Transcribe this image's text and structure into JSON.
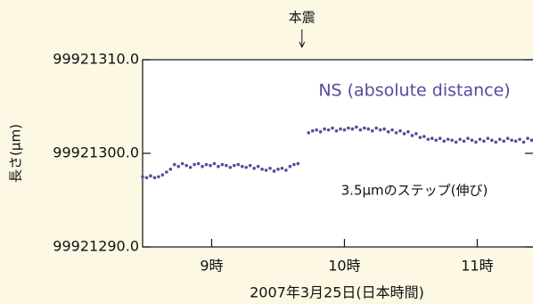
{
  "chart_data": {
    "type": "scatter",
    "series_label": "NS (absolute distance)",
    "annotations": [
      {
        "text": "本震",
        "x": 9.68
      },
      {
        "text": "3.5μmのステップ(伸び)"
      }
    ],
    "xlabel": "2007年3月25日(日本時間)",
    "ylabel": "長さ(μm)",
    "color": "#5a4a9c",
    "xlim": [
      8.48,
      11.42
    ],
    "ylim": [
      99921290,
      99921310
    ],
    "xticks": [
      {
        "value": 9,
        "label": "9時"
      },
      {
        "value": 10,
        "label": "10時"
      },
      {
        "value": 11,
        "label": "11時"
      }
    ],
    "yticks": [
      {
        "value": 99921290,
        "label": "99921290.0"
      },
      {
        "value": 99921300,
        "label": "99921300.0"
      },
      {
        "value": 99921310,
        "label": "99921310.0"
      }
    ],
    "x": [
      8.48,
      8.51,
      8.54,
      8.57,
      8.6,
      8.63,
      8.66,
      8.69,
      8.72,
      8.75,
      8.78,
      8.81,
      8.84,
      8.87,
      8.9,
      8.93,
      8.96,
      8.99,
      9.02,
      9.05,
      9.08,
      9.11,
      9.14,
      9.17,
      9.2,
      9.23,
      9.26,
      9.29,
      9.32,
      9.35,
      9.38,
      9.41,
      9.44,
      9.47,
      9.5,
      9.53,
      9.56,
      9.59,
      9.62,
      9.65,
      9.73,
      9.76,
      9.79,
      9.82,
      9.85,
      9.88,
      9.91,
      9.94,
      9.97,
      10.0,
      10.03,
      10.06,
      10.09,
      10.12,
      10.15,
      10.18,
      10.21,
      10.24,
      10.27,
      10.3,
      10.33,
      10.36,
      10.39,
      10.42,
      10.45,
      10.48,
      10.51,
      10.54,
      10.57,
      10.6,
      10.63,
      10.66,
      10.69,
      10.72,
      10.75,
      10.78,
      10.81,
      10.84,
      10.87,
      10.9,
      10.93,
      10.96,
      10.99,
      11.02,
      11.05,
      11.08,
      11.11,
      11.14,
      11.17,
      11.2,
      11.23,
      11.26,
      11.29,
      11.32,
      11.35,
      11.38,
      11.41
    ],
    "values": [
      99921297.5,
      99921297.4,
      99921297.6,
      99921297.4,
      99921297.5,
      99921297.7,
      99921298.0,
      99921298.3,
      99921298.8,
      99921298.6,
      99921298.9,
      99921298.7,
      99921298.5,
      99921298.8,
      99921298.9,
      99921298.6,
      99921298.8,
      99921298.7,
      99921298.9,
      99921298.6,
      99921298.8,
      99921298.7,
      99921298.5,
      99921298.7,
      99921298.8,
      99921298.6,
      99921298.5,
      99921298.7,
      99921298.4,
      99921298.6,
      99921298.3,
      99921298.2,
      99921298.4,
      99921298.1,
      99921298.3,
      99921298.4,
      99921298.2,
      99921298.6,
      99921298.8,
      99921298.9,
      99921302.2,
      99921302.4,
      99921302.5,
      99921302.3,
      99921302.6,
      99921302.5,
      99921302.7,
      99921302.4,
      99921302.6,
      99921302.5,
      99921302.7,
      99921302.6,
      99921302.8,
      99921302.5,
      99921302.7,
      99921302.6,
      99921302.4,
      99921302.7,
      99921302.5,
      99921302.6,
      99921302.3,
      99921302.5,
      99921302.2,
      99921302.4,
      99921302.1,
      99921302.3,
      99921301.9,
      99921302.1,
      99921301.7,
      99921301.8,
      99921301.5,
      99921301.6,
      99921301.4,
      99921301.6,
      99921301.3,
      99921301.5,
      99921301.4,
      99921301.2,
      99921301.5,
      99921301.3,
      99921301.6,
      99921301.4,
      99921301.2,
      99921301.5,
      99921301.3,
      99921301.6,
      99921301.4,
      99921301.2,
      99921301.5,
      99921301.3,
      99921301.6,
      99921301.4,
      99921301.3,
      99921301.5,
      99921301.2,
      99921301.6,
      99921301.4
    ]
  }
}
